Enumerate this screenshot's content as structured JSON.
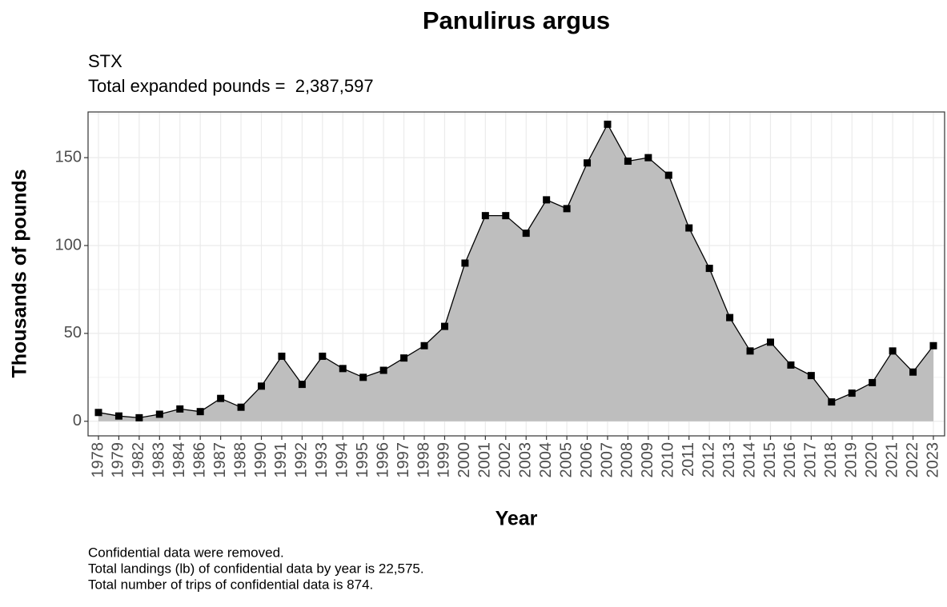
{
  "chart_data": {
    "type": "area",
    "title": "Panulirus argus",
    "subtitle": [
      "STX",
      "Total expanded pounds =  2,387,597"
    ],
    "caption": [
      "Confidential data were removed.",
      "Total landings (lb) of confidential data by year is 22,575.",
      "Total number of trips of confidential data is 874."
    ],
    "x_label": "Year",
    "y_label": "Thousands of pounds",
    "categories": [
      "1978",
      "1979",
      "1982",
      "1983",
      "1984",
      "1986",
      "1987",
      "1988",
      "1990",
      "1991",
      "1992",
      "1993",
      "1994",
      "1995",
      "1996",
      "1997",
      "1998",
      "1999",
      "2000",
      "2001",
      "2002",
      "2003",
      "2004",
      "2005",
      "2006",
      "2007",
      "2008",
      "2009",
      "2010",
      "2011",
      "2012",
      "2013",
      "2014",
      "2015",
      "2016",
      "2017",
      "2018",
      "2019",
      "2020",
      "2021",
      "2022",
      "2023"
    ],
    "values": [
      5,
      3,
      2,
      4,
      7,
      5.5,
      13,
      8,
      20,
      37,
      21,
      37,
      30,
      25,
      29,
      36,
      43,
      54,
      90,
      117,
      117,
      107,
      126,
      121,
      147,
      169,
      148,
      150,
      140,
      110,
      87,
      59,
      40,
      45,
      32,
      26,
      11,
      16,
      22,
      40,
      28,
      43
    ],
    "color": "#bebebe",
    "line_color": "#000000",
    "ylim": [
      -8.3,
      176
    ],
    "yticks": [
      0,
      50,
      100,
      150
    ],
    "yminorticks": [
      25,
      75,
      125,
      175
    ],
    "grid": true
  }
}
